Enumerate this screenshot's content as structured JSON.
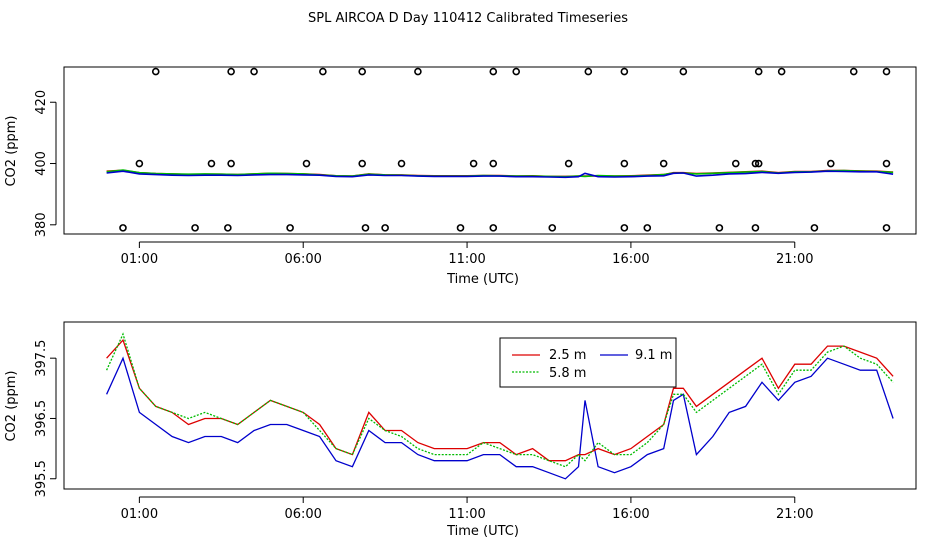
{
  "title": "SPL AIRCOA D  Day 110412  Calibrated Timeseries",
  "colors": {
    "s25": "#dd0000",
    "s58": "#00bb00",
    "s91": "#0000cc"
  },
  "chart_data": [
    {
      "type": "scatter",
      "title": "SPL AIRCOA D  Day 110412  Calibrated Timeseries",
      "xlabel": "Time (UTC)",
      "ylabel": "CO2 (ppm)",
      "xlim": [
        -1.3,
        24.7
      ],
      "ylim": [
        377,
        431.5
      ],
      "xticks": [
        1,
        6,
        11,
        16,
        21
      ],
      "xtick_labels": [
        "01:00",
        "06:00",
        "11:00",
        "16:00",
        "21:00"
      ],
      "yticks": [
        380,
        400,
        420
      ],
      "ytick_labels": [
        "380",
        "400",
        "420"
      ],
      "outliers_high": {
        "y": 430,
        "x": [
          1.5,
          3.8,
          4.5,
          6.6,
          7.8,
          9.5,
          11.8,
          12.5,
          14.7,
          15.8,
          17.6,
          19.9,
          20.6,
          22.8,
          23.8
        ]
      },
      "outliers_mid": {
        "y": 400,
        "x": [
          1.0,
          3.2,
          3.8,
          6.1,
          7.8,
          9.0,
          11.2,
          11.8,
          14.1,
          15.8,
          17.0,
          19.2,
          19.8,
          19.9,
          22.1,
          23.8
        ]
      },
      "outliers_low": {
        "y": 379,
        "x": [
          0.5,
          2.7,
          3.7,
          5.6,
          7.9,
          8.5,
          10.8,
          11.8,
          13.6,
          15.8,
          16.5,
          18.7,
          19.8,
          21.6,
          23.8
        ]
      },
      "series": [
        {
          "name": "2.5 m",
          "color": "#dd0000",
          "base_series": 0
        },
        {
          "name": "5.8 m",
          "color": "#00bb00",
          "base_series": 1
        },
        {
          "name": "9.1 m",
          "color": "#0000cc",
          "base_series": 2
        }
      ]
    },
    {
      "type": "line",
      "xlabel": "Time (UTC)",
      "ylabel": "CO2 (ppm)",
      "xlim": [
        -1.3,
        24.7
      ],
      "ylim": [
        395.33,
        398.1
      ],
      "xticks": [
        1,
        6,
        11,
        16,
        21
      ],
      "xtick_labels": [
        "01:00",
        "06:00",
        "11:00",
        "16:00",
        "21:00"
      ],
      "yticks": [
        395.5,
        396.5,
        397.5
      ],
      "ytick_labels": [
        "395.5",
        "396.5",
        "397.5"
      ],
      "legend": "top-center",
      "x": [
        0,
        0.5,
        1,
        1.5,
        2,
        2.5,
        3,
        3.5,
        4,
        4.5,
        5,
        5.5,
        6,
        6.5,
        7,
        7.5,
        8,
        8.5,
        9,
        9.5,
        10,
        10.5,
        11,
        11.5,
        12,
        12.5,
        13,
        13.5,
        14,
        14.4,
        14.6,
        15,
        15.5,
        16,
        16.5,
        17,
        17.3,
        17.6,
        18,
        18.5,
        19,
        19.5,
        20,
        20.5,
        21,
        21.5,
        22,
        22.5,
        23,
        23.5,
        24
      ],
      "series": [
        {
          "name": "2.5 m",
          "color": "#dd0000",
          "values": [
            397.5,
            397.8,
            397.0,
            396.7,
            396.6,
            396.4,
            396.5,
            396.5,
            396.4,
            396.6,
            396.8,
            396.7,
            396.6,
            396.4,
            396.0,
            395.9,
            396.6,
            396.3,
            396.3,
            396.1,
            396.0,
            396.0,
            396.0,
            396.1,
            396.1,
            395.9,
            396.0,
            395.8,
            395.8,
            395.9,
            395.9,
            396.0,
            395.9,
            396.0,
            396.2,
            396.4,
            397.0,
            397.0,
            396.7,
            396.9,
            397.1,
            397.3,
            397.5,
            397.0,
            397.4,
            397.4,
            397.7,
            397.7,
            397.6,
            397.5,
            397.2
          ]
        },
        {
          "name": "5.8 m",
          "color": "#00bb00",
          "values": [
            397.3,
            397.9,
            397.0,
            396.7,
            396.6,
            396.5,
            396.6,
            396.5,
            396.4,
            396.6,
            396.8,
            396.7,
            396.6,
            396.3,
            396.0,
            395.9,
            396.5,
            396.3,
            396.2,
            396.0,
            395.9,
            395.9,
            395.9,
            396.1,
            396.0,
            395.9,
            395.9,
            395.8,
            395.7,
            395.9,
            395.8,
            396.1,
            395.9,
            395.9,
            396.1,
            396.4,
            396.9,
            396.9,
            396.6,
            396.8,
            397.0,
            397.2,
            397.4,
            396.9,
            397.3,
            397.3,
            397.6,
            397.7,
            397.5,
            397.4,
            397.1
          ]
        },
        {
          "name": "9.1 m",
          "color": "#0000cc",
          "values": [
            396.9,
            397.5,
            396.6,
            396.4,
            396.2,
            396.1,
            396.2,
            396.2,
            396.1,
            396.3,
            396.4,
            396.4,
            396.3,
            396.2,
            395.8,
            395.7,
            396.3,
            396.1,
            396.1,
            395.9,
            395.8,
            395.8,
            395.8,
            395.9,
            395.9,
            395.7,
            395.7,
            395.6,
            395.5,
            395.7,
            396.8,
            395.7,
            395.6,
            395.7,
            395.9,
            396.0,
            396.8,
            396.9,
            395.9,
            396.2,
            396.6,
            396.7,
            397.1,
            396.8,
            397.1,
            397.2,
            397.5,
            397.4,
            397.3,
            397.3,
            396.5
          ]
        }
      ]
    }
  ]
}
